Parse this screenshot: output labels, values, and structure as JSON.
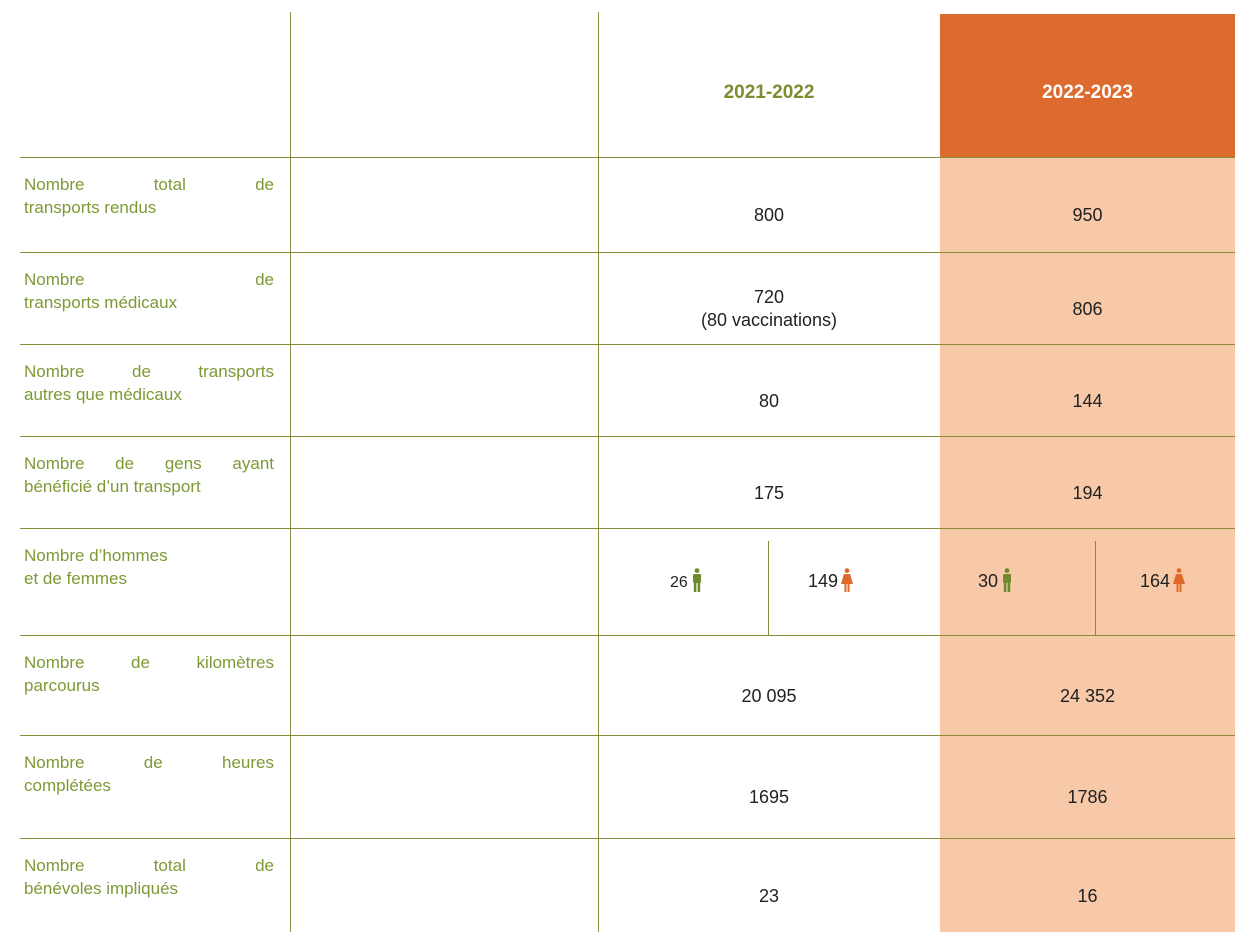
{
  "table": {
    "columns": [
      "2021-2022",
      "2022-2023"
    ],
    "rows": [
      {
        "label": [
          "Nombre total de",
          "transports rendus"
        ],
        "values": [
          "800",
          "950"
        ]
      },
      {
        "label": [
          "Nombre de",
          "transports médicaux"
        ],
        "values": [
          "720",
          "806"
        ],
        "note": "(80 vaccinations)"
      },
      {
        "label": [
          "Nombre de transports",
          "autres que médicaux"
        ],
        "values": [
          "80",
          "144"
        ]
      },
      {
        "label": [
          "Nombre de gens ayant",
          "bénéficié d’un transport"
        ],
        "values": [
          "175",
          "194"
        ]
      },
      {
        "label": [
          "Nombre d’hommes",
          "et de femmes"
        ],
        "values": [
          {
            "men": "26",
            "women": "149"
          },
          {
            "men": "30",
            "women": "164"
          }
        ]
      },
      {
        "label": [
          "Nombre de kilomètres",
          "parcourus"
        ],
        "values": [
          "20 095",
          "24 352"
        ]
      },
      {
        "label": [
          "Nombre de heures",
          "complétées"
        ],
        "values": [
          "1695",
          "1786"
        ]
      },
      {
        "label": [
          "Nombre total de",
          "bénévoles impliqués"
        ],
        "values": [
          "23",
          "16"
        ]
      }
    ]
  }
}
